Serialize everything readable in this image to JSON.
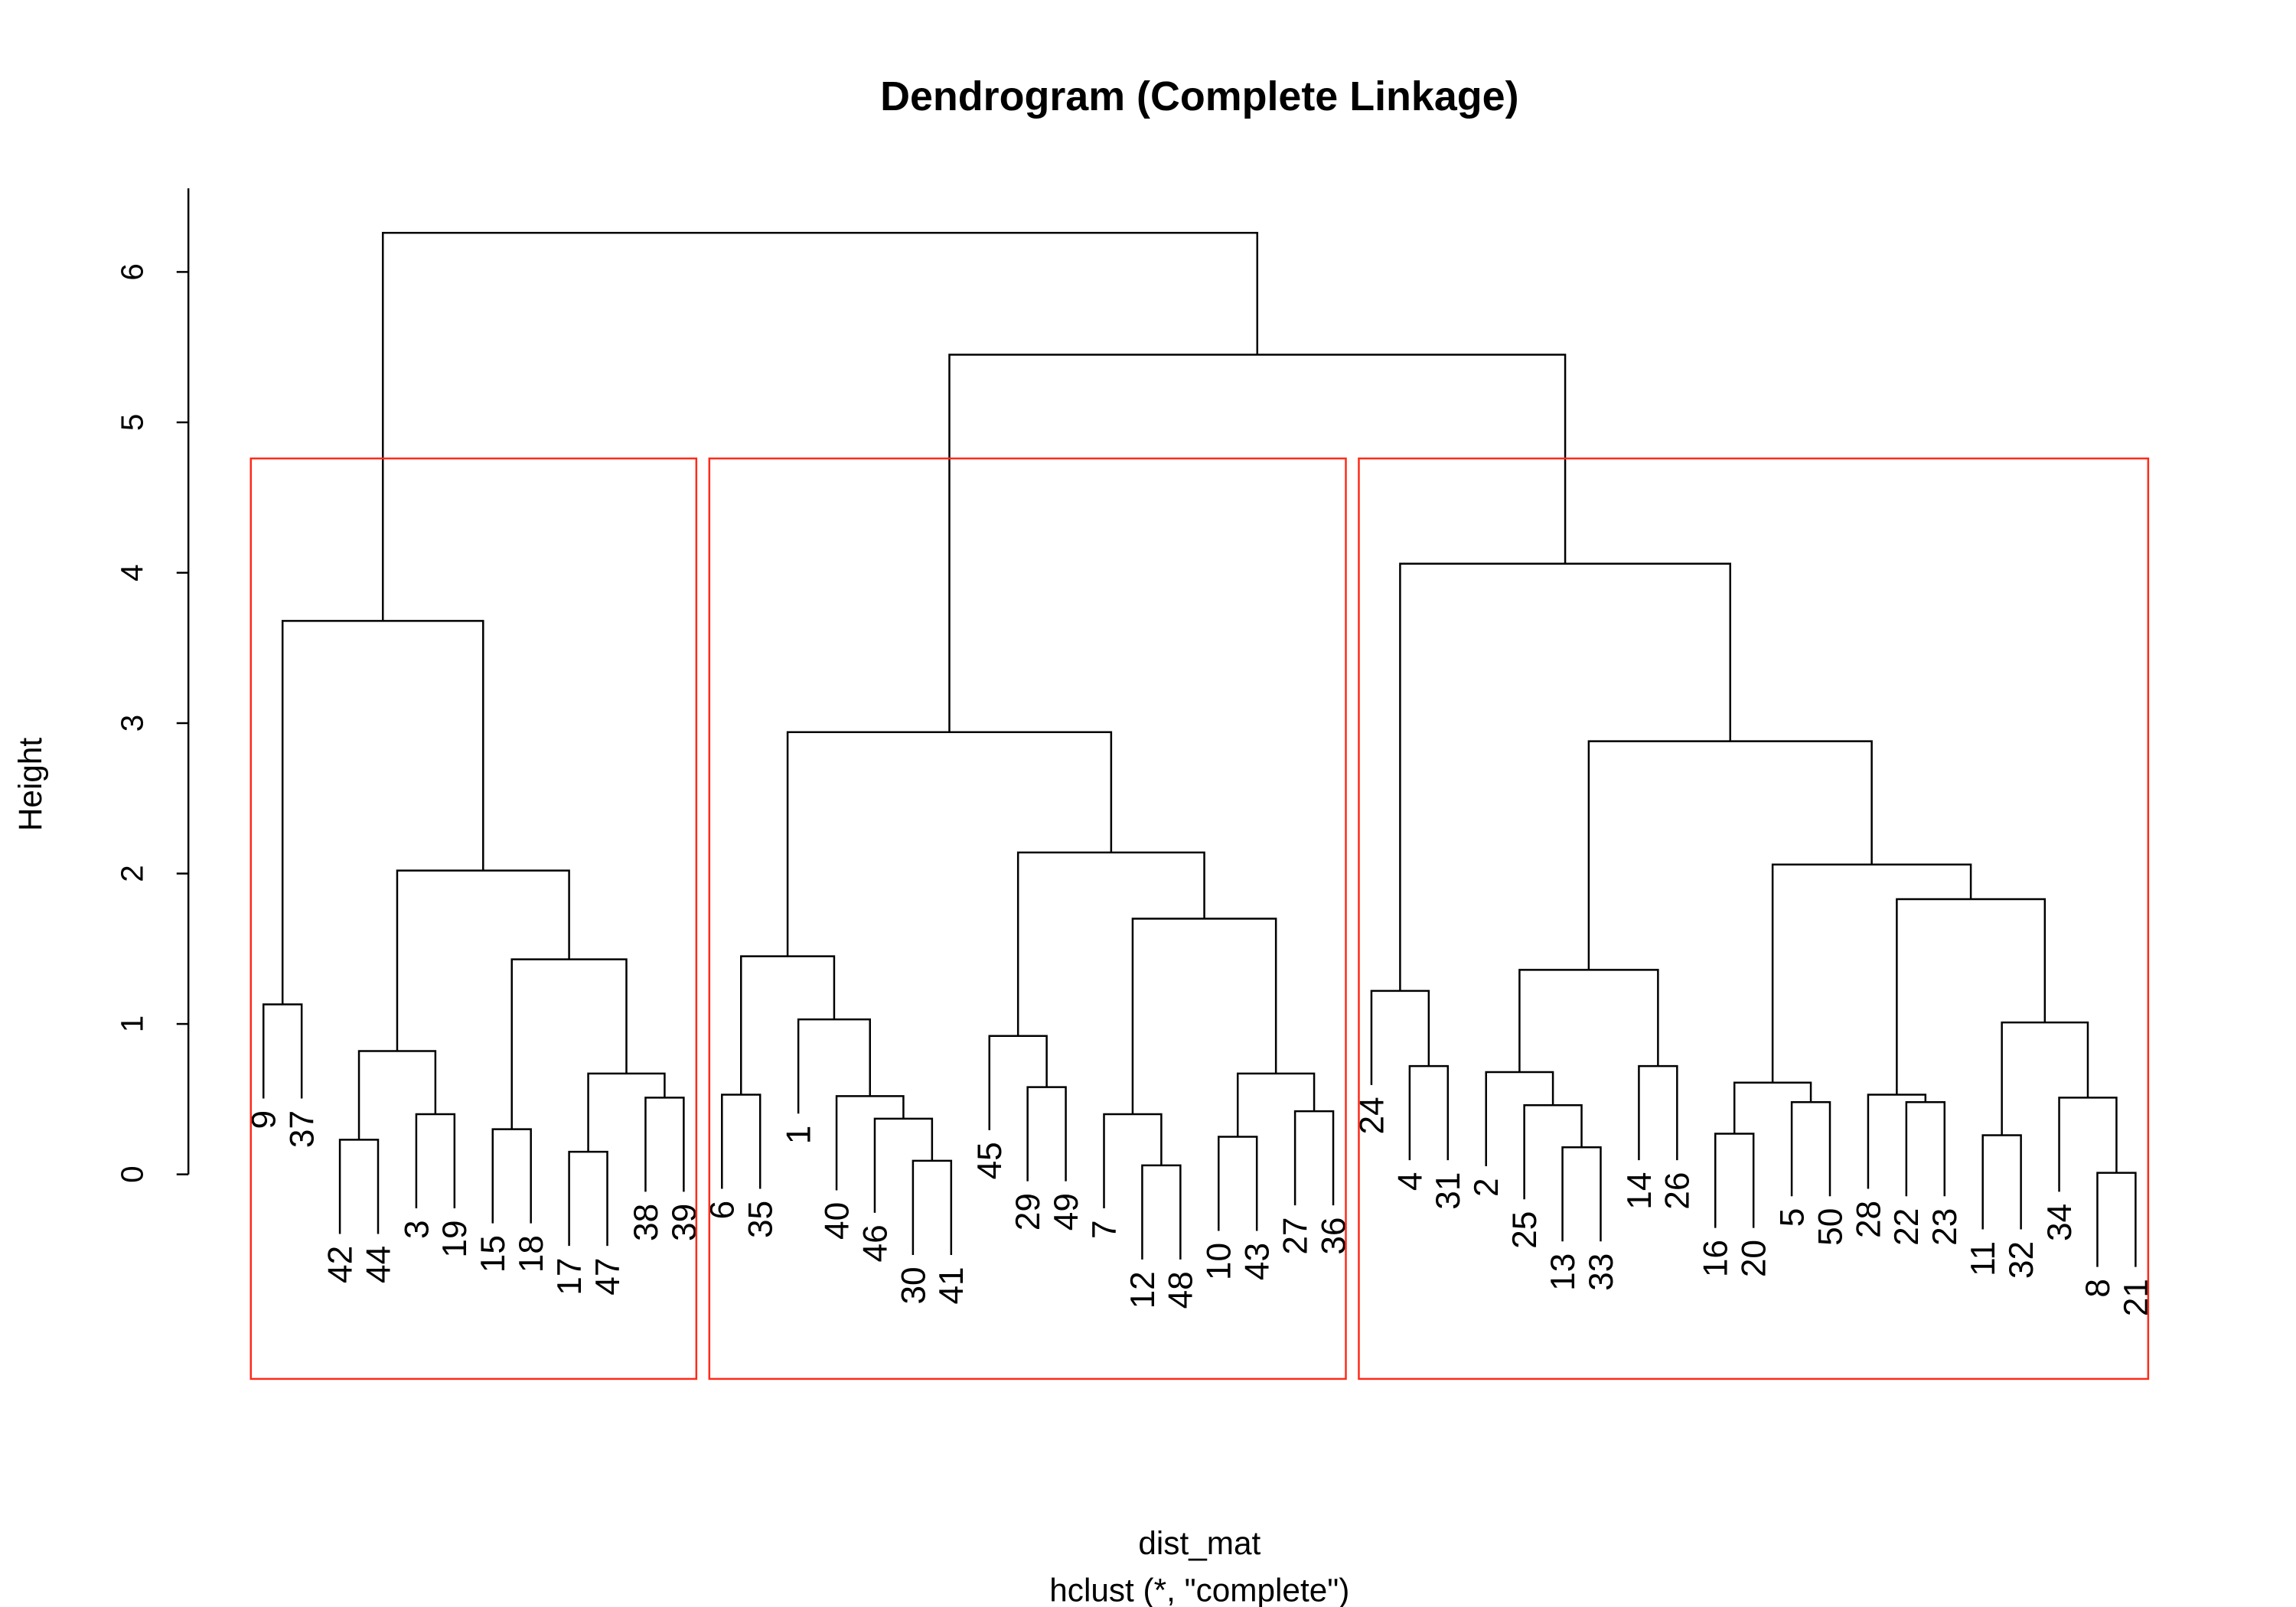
{
  "chart_data": {
    "type": "dendrogram",
    "title": "Dendrogram (Complete Linkage)",
    "ylabel": "Height",
    "xlabel": "dist_mat",
    "sublabel": "hclust (*, \"complete\")",
    "ylim": [
      0,
      6.3
    ],
    "yticks": [
      "0",
      "1",
      "2",
      "3",
      "4",
      "5",
      "6"
    ],
    "hang": 0.1,
    "leaf_order": [
      "9",
      "37",
      "42",
      "44",
      "3",
      "19",
      "15",
      "18",
      "17",
      "47",
      "38",
      "39",
      "6",
      "35",
      "1",
      "40",
      "46",
      "30",
      "41",
      "45",
      "29",
      "49",
      "7",
      "12",
      "48",
      "10",
      "43",
      "27",
      "36",
      "24",
      "4",
      "31",
      "2",
      "25",
      "13",
      "33",
      "14",
      "26",
      "16",
      "20",
      "5",
      "50",
      "28",
      "22",
      "23",
      "11",
      "32",
      "34",
      "8",
      "21"
    ],
    "merge_note": "negative = leaf label, positive = earlier merge step (1-based)",
    "merges": [
      [
        -9,
        -37,
        1.13
      ],
      [
        -42,
        -44,
        0.23
      ],
      [
        -3,
        -19,
        0.4
      ],
      [
        2,
        3,
        0.82
      ],
      [
        -15,
        -18,
        0.3
      ],
      [
        -17,
        -47,
        0.15
      ],
      [
        -38,
        -39,
        0.51
      ],
      [
        6,
        7,
        0.67
      ],
      [
        5,
        8,
        1.43
      ],
      [
        4,
        9,
        2.02
      ],
      [
        1,
        10,
        3.68
      ],
      [
        -6,
        -35,
        0.53
      ],
      [
        -30,
        -41,
        0.09
      ],
      [
        -46,
        13,
        0.37
      ],
      [
        -40,
        14,
        0.52
      ],
      [
        -1,
        15,
        1.03
      ],
      [
        12,
        16,
        1.45
      ],
      [
        -29,
        -49,
        0.58
      ],
      [
        -45,
        18,
        0.92
      ],
      [
        -12,
        -48,
        0.06
      ],
      [
        -7,
        20,
        0.4
      ],
      [
        -10,
        -43,
        0.25
      ],
      [
        -27,
        -36,
        0.42
      ],
      [
        22,
        23,
        0.67
      ],
      [
        21,
        24,
        1.7
      ],
      [
        19,
        25,
        2.14
      ],
      [
        17,
        26,
        2.94
      ],
      [
        -4,
        -31,
        0.72
      ],
      [
        -24,
        28,
        1.22
      ],
      [
        -13,
        -33,
        0.18
      ],
      [
        -25,
        30,
        0.46
      ],
      [
        -2,
        31,
        0.68
      ],
      [
        -14,
        -26,
        0.72
      ],
      [
        32,
        33,
        1.36
      ],
      [
        -16,
        -20,
        0.27
      ],
      [
        -5,
        -50,
        0.48
      ],
      [
        35,
        36,
        0.61
      ],
      [
        -22,
        -23,
        0.48
      ],
      [
        -28,
        38,
        0.53
      ],
      [
        -11,
        -32,
        0.26
      ],
      [
        -8,
        -21,
        0.01
      ],
      [
        -34,
        41,
        0.51
      ],
      [
        40,
        42,
        1.01
      ],
      [
        39,
        43,
        1.83
      ],
      [
        37,
        44,
        2.06
      ],
      [
        34,
        45,
        2.88
      ],
      [
        29,
        46,
        4.06
      ],
      [
        27,
        47,
        5.45
      ],
      [
        11,
        48,
        6.26
      ]
    ],
    "cut_k": 3,
    "cut_height": 4.76,
    "cluster_boxes": [
      {
        "first_leaf": 0,
        "last_leaf": 11
      },
      {
        "first_leaf": 12,
        "last_leaf": 28
      },
      {
        "first_leaf": 29,
        "last_leaf": 49
      }
    ],
    "box_color": "#ff2a1a",
    "line_color": "#000000"
  }
}
